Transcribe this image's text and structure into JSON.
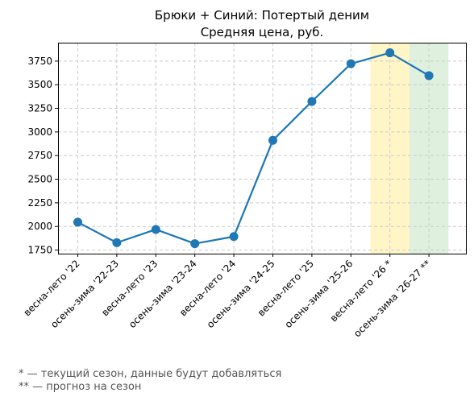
{
  "chart_data": {
    "type": "line",
    "title": "Брюки + Синий: Потертый деним",
    "subtitle": "Средняя цена, руб.",
    "xlabel": "",
    "ylabel": "",
    "categories": [
      "весна-лето '22",
      "осень-зима '22-23",
      "весна-лето '23",
      "осень-зима '23-24",
      "весна-лето '24",
      "осень-зима '24-25",
      "весна-лето '25",
      "осень-зима '25-26",
      "весна-лето '26 *",
      "осень-зима '26-27 **"
    ],
    "series": [
      {
        "values": [
          2045,
          1828,
          1968,
          1818,
          1893,
          2912,
          3323,
          3722,
          3838,
          3596
        ]
      }
    ],
    "ylim": [
      1712,
      3945
    ],
    "yticks": [
      1750,
      2000,
      2250,
      2500,
      2750,
      3000,
      3250,
      3500,
      3750
    ],
    "grid": true,
    "highlight_bands": [
      {
        "category_index": 8,
        "meaning": "current season",
        "color": "#fff2b3"
      },
      {
        "category_index": 9,
        "meaning": "forecast",
        "color": "#d4ebd4"
      }
    ],
    "line_color": "#1f77b4"
  },
  "footnotes": {
    "current": "* — текущий сезон, данные будут добавляться",
    "forecast": "** — прогноз на сезон"
  }
}
